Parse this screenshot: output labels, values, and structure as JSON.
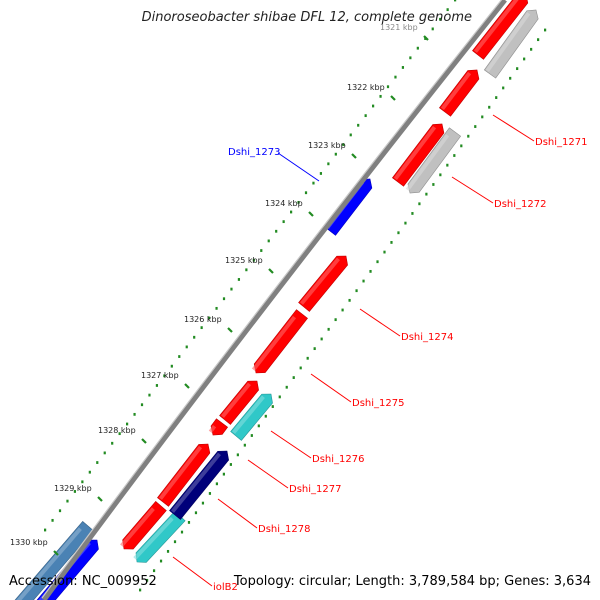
{
  "title": "Dinoroseobacter shibae DFL 12, complete genome",
  "footer": {
    "accession": "Accession: NC_009952",
    "summary": "Topology: circular; Length: 3,789,584 bp; Genes: 3,634"
  },
  "colors": {
    "backbone": "#808080",
    "tick": "#228B22",
    "red": "#ff0000",
    "gray": "#c0c0c0",
    "blue": "#0000ff",
    "navy": "#00007a",
    "cyan": "#30c8c8",
    "steel": "#4a82b4"
  },
  "ruler": [
    {
      "label": "1321 kbp"
    },
    {
      "label": "1322 kbp"
    },
    {
      "label": "1323 kbp"
    },
    {
      "label": "1324 kbp"
    },
    {
      "label": "1325 kbp"
    },
    {
      "label": "1326 kbp"
    },
    {
      "label": "1327 kbp"
    },
    {
      "label": "1328 kbp"
    },
    {
      "label": "1329 kbp"
    },
    {
      "label": "1330 kbp"
    }
  ],
  "gene_labels": [
    {
      "text": "Dshi_1271",
      "color": "red"
    },
    {
      "text": "Dshi_1272",
      "color": "red"
    },
    {
      "text": "Dshi_1273",
      "color": "blue"
    },
    {
      "text": "Dshi_1274",
      "color": "red"
    },
    {
      "text": "Dshi_1275",
      "color": "red"
    },
    {
      "text": "Dshi_1276",
      "color": "red"
    },
    {
      "text": "Dshi_1277",
      "color": "red"
    },
    {
      "text": "Dshi_1278",
      "color": "red"
    },
    {
      "text": "iolB2",
      "color": "red"
    }
  ],
  "features": [
    {
      "id": "f1",
      "color": "red"
    },
    {
      "id": "f2",
      "color": "red"
    },
    {
      "id": "f3",
      "color": "red"
    },
    {
      "id": "f4",
      "color": "red"
    },
    {
      "id": "f5",
      "color": "red"
    },
    {
      "id": "f6",
      "color": "red"
    },
    {
      "id": "f7",
      "color": "red"
    },
    {
      "id": "f8",
      "color": "red"
    },
    {
      "id": "f9",
      "color": "red"
    },
    {
      "id": "g1",
      "color": "gray"
    },
    {
      "id": "g2",
      "color": "gray"
    },
    {
      "id": "b1",
      "color": "blue"
    },
    {
      "id": "b2",
      "color": "blue"
    },
    {
      "id": "c1",
      "color": "cyan"
    },
    {
      "id": "c2",
      "color": "cyan"
    },
    {
      "id": "n1",
      "color": "navy"
    },
    {
      "id": "s1",
      "color": "steel"
    }
  ]
}
